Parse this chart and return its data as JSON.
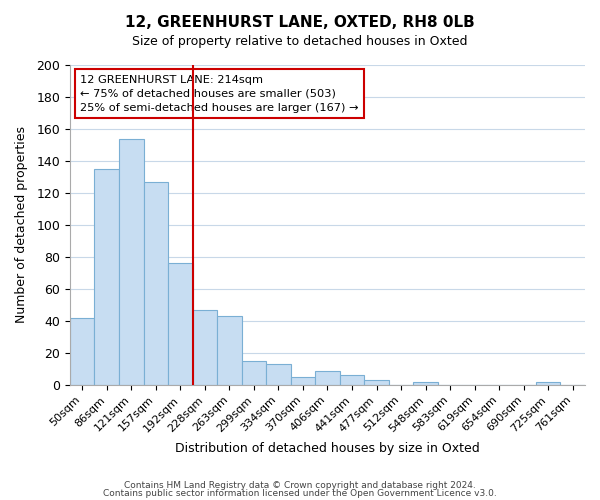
{
  "title_line1": "12, GREENHURST LANE, OXTED, RH8 0LB",
  "title_line2": "Size of property relative to detached houses in Oxted",
  "xlabel": "Distribution of detached houses by size in Oxted",
  "ylabel": "Number of detached properties",
  "bar_labels": [
    "50sqm",
    "86sqm",
    "121sqm",
    "157sqm",
    "192sqm",
    "228sqm",
    "263sqm",
    "299sqm",
    "334sqm",
    "370sqm",
    "406sqm",
    "441sqm",
    "477sqm",
    "512sqm",
    "548sqm",
    "583sqm",
    "619sqm",
    "654sqm",
    "690sqm",
    "725sqm",
    "761sqm"
  ],
  "bar_values": [
    42,
    135,
    154,
    127,
    76,
    47,
    43,
    15,
    13,
    5,
    9,
    6,
    3,
    0,
    2,
    0,
    0,
    0,
    0,
    2,
    0
  ],
  "bar_color": "#c7ddf2",
  "bar_edge_color": "#7aafd4",
  "vline_x": 4.5,
  "vline_color": "#cc0000",
  "annotation_title": "12 GREENHURST LANE: 214sqm",
  "annotation_line1": "← 75% of detached houses are smaller (503)",
  "annotation_line2": "25% of semi-detached houses are larger (167) →",
  "annotation_box_color": "#ffffff",
  "annotation_box_edge_color": "#cc0000",
  "ylim": [
    0,
    200
  ],
  "yticks": [
    0,
    20,
    40,
    60,
    80,
    100,
    120,
    140,
    160,
    180,
    200
  ],
  "footer_line1": "Contains HM Land Registry data © Crown copyright and database right 2024.",
  "footer_line2": "Contains public sector information licensed under the Open Government Licence v3.0.",
  "background_color": "#ffffff",
  "grid_color": "#c8d8e8"
}
